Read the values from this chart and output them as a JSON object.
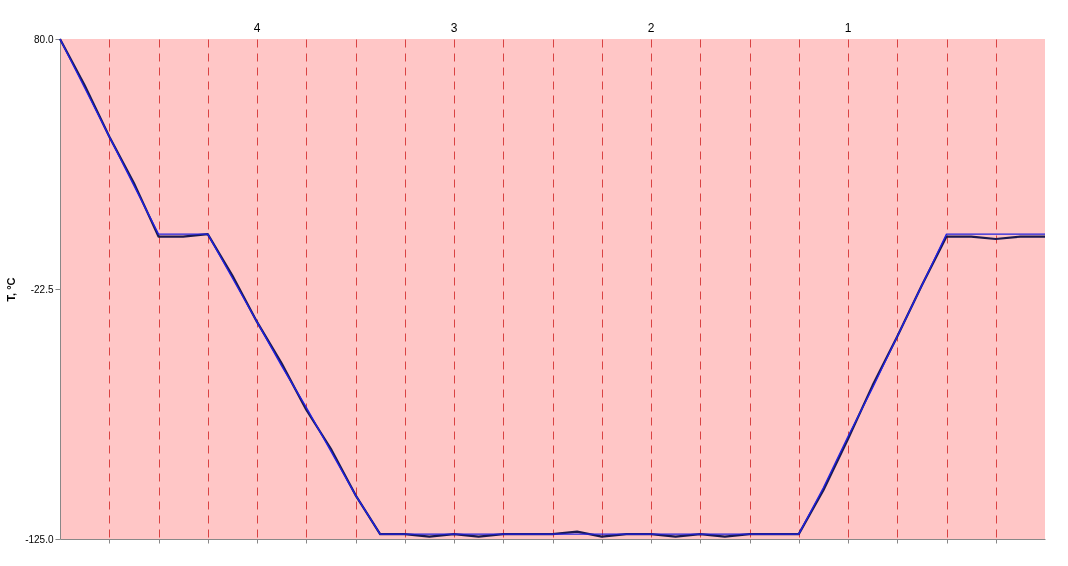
{
  "chart_data": {
    "type": "line",
    "ylabel": "T, °C",
    "categories": [
      null,
      null,
      null,
      null,
      null,
      null,
      null,
      null,
      null,
      null,
      null,
      null,
      null,
      null,
      null,
      null,
      null,
      null,
      null,
      null,
      null,
      null,
      null,
      null,
      null,
      null,
      null,
      null,
      null,
      null,
      null,
      null,
      null,
      null,
      null,
      null,
      null,
      null,
      null,
      null,
      null
    ],
    "series": [
      {
        "color": "#1a1a50",
        "values": [
          80,
          61,
          40,
          21,
          -1,
          -1,
          0,
          -17,
          -36,
          -53,
          -72,
          -88,
          -107,
          -123,
          -123,
          -124,
          -123,
          -124,
          -123,
          -123,
          -123,
          -122,
          -124,
          -123,
          -123,
          -124,
          -123,
          -124,
          -123,
          -123,
          -123,
          -105,
          -84,
          -62,
          -42,
          -21,
          -1,
          -1,
          -2,
          -1,
          -1
        ]
      },
      {
        "color": "#2020e0",
        "values": [
          80,
          60,
          40,
          20,
          0,
          0,
          0,
          -18,
          -36,
          -54,
          -71,
          -89,
          -107,
          -123,
          -123,
          -123,
          -123,
          -123,
          -123,
          -123,
          -123,
          -123,
          -123,
          -123,
          -123,
          -123,
          -123,
          -123,
          -123,
          -123,
          -123,
          -104,
          -83,
          -63,
          -42,
          -21,
          0,
          0,
          0,
          0,
          0
        ]
      }
    ],
    "ylim": [
      -125,
      80
    ],
    "yticks": [
      {
        "value": 80,
        "label": "80.0"
      },
      {
        "value": -22.5,
        "label": "-22.5"
      },
      {
        "value": -125,
        "label": "-125.0"
      }
    ],
    "grid": "x",
    "line_style": "solid",
    "marker": "none",
    "legend": false,
    "annotations": [
      "4",
      "3",
      "2",
      "1"
    ]
  }
}
